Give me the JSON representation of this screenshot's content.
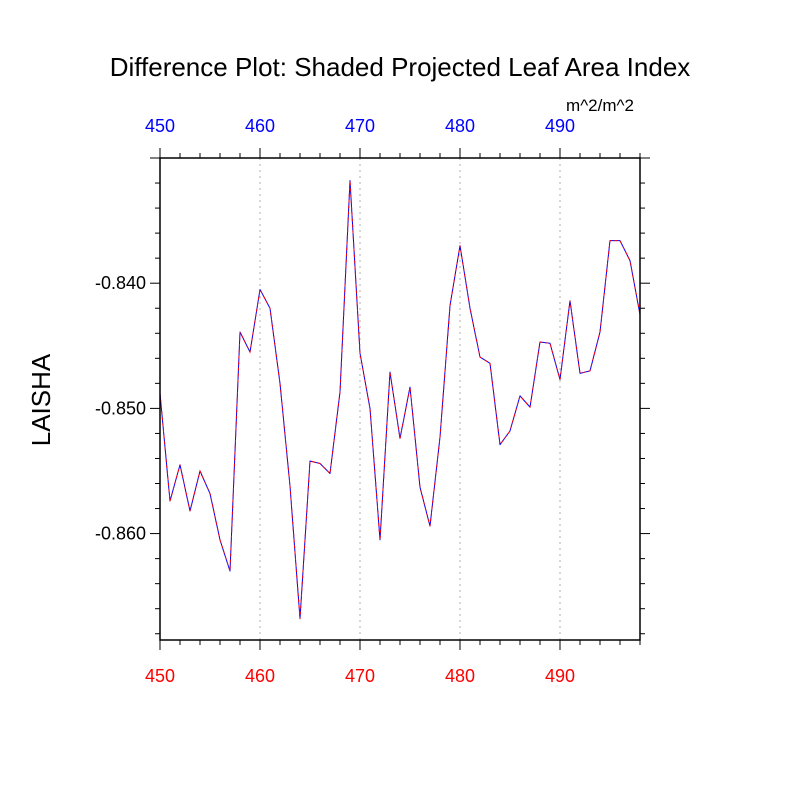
{
  "chart_data": {
    "type": "line",
    "title": "Difference Plot: Shaded Projected Leaf Area Index",
    "ylabel": "LAISHA",
    "xlabel": "",
    "units": "m^2/m^2",
    "xlim": [
      450,
      498
    ],
    "ylim": [
      -0.8685,
      -0.83
    ],
    "x_ticks": [
      450,
      460,
      470,
      480,
      490
    ],
    "x_tick_labels": [
      "450",
      "460",
      "470",
      "480",
      "490"
    ],
    "y_ticks": [
      -0.86,
      -0.85,
      -0.84
    ],
    "y_tick_labels": [
      "-0.860",
      "-0.850",
      "-0.840"
    ],
    "grid": "vertical dotted at major x ticks",
    "colors": {
      "bottom_axis_labels": "#ff0000",
      "top_axis_labels": "#0000ff",
      "line_primary": "#0000ff",
      "line_overlay": "#ff0000"
    },
    "series": [
      {
        "x": [
          450,
          451,
          452,
          453,
          454,
          455,
          456,
          457,
          458,
          459,
          460,
          461,
          462,
          463,
          464,
          465,
          466,
          467,
          468,
          469,
          470,
          471,
          472,
          473,
          474,
          475,
          476,
          477,
          478,
          479,
          480,
          481,
          482,
          483,
          484,
          485,
          486,
          487,
          488,
          489,
          490,
          491,
          492,
          493,
          494,
          495,
          496,
          497,
          498
        ],
        "values": [
          -0.8488,
          -0.8574,
          -0.8545,
          -0.8582,
          -0.855,
          -0.8568,
          -0.8605,
          -0.863,
          -0.8439,
          -0.8455,
          -0.8405,
          -0.842,
          -0.848,
          -0.8562,
          -0.8668,
          -0.8542,
          -0.8544,
          -0.8552,
          -0.8487,
          -0.8318,
          -0.8456,
          -0.85,
          -0.8605,
          -0.8471,
          -0.8524,
          -0.8483,
          -0.8563,
          -0.8594,
          -0.8523,
          -0.8418,
          -0.837,
          -0.842,
          -0.8459,
          -0.8464,
          -0.8529,
          -0.8518,
          -0.849,
          -0.8499,
          -0.8447,
          -0.8448,
          -0.8477,
          -0.8414,
          -0.8472,
          -0.847,
          -0.8439,
          -0.8366,
          -0.8366,
          -0.8382,
          -0.8425
        ]
      }
    ]
  }
}
